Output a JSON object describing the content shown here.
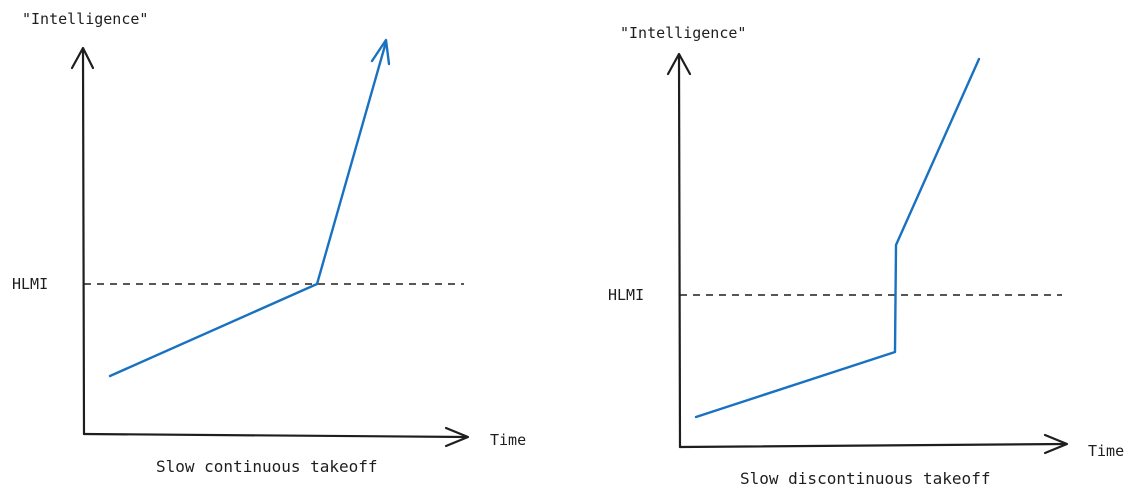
{
  "colors": {
    "ink": "#1e1e1e",
    "curve": "#1971c2"
  },
  "panels": [
    {
      "y_axis_label": "\"Intelligence\"",
      "x_axis_label": "Time",
      "threshold_label": "HLMI",
      "caption": "Slow continuous takeoff"
    },
    {
      "y_axis_label": "\"Intelligence\"",
      "x_axis_label": "Time",
      "threshold_label": "HLMI",
      "caption": "Slow discontinuous takeoff"
    }
  ]
}
